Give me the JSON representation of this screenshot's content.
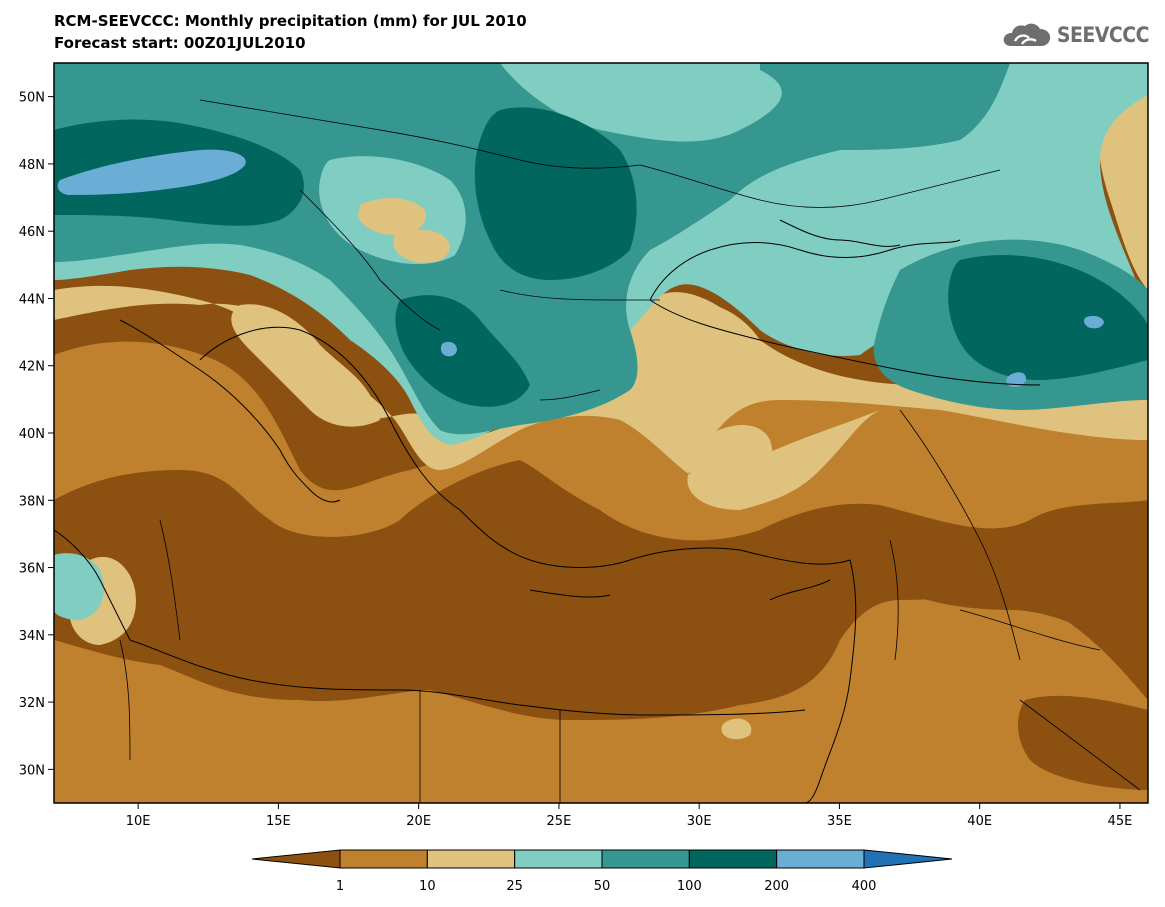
{
  "header": {
    "title": "RCM-SEEVCCC: Monthly precipitation (mm) for JUL 2010",
    "subtitle": "Forecast start: 00Z01JUL2010"
  },
  "logo": {
    "text": "SEEVCCC",
    "icon": "cloud-logo-icon"
  },
  "map": {
    "lon_range": [
      7,
      46
    ],
    "lat_range": [
      29,
      51
    ],
    "lat_ticks": [
      {
        "value": 50,
        "label": "50N"
      },
      {
        "value": 48,
        "label": "48N"
      },
      {
        "value": 46,
        "label": "46N"
      },
      {
        "value": 44,
        "label": "44N"
      },
      {
        "value": 42,
        "label": "42N"
      },
      {
        "value": 40,
        "label": "40N"
      },
      {
        "value": 38,
        "label": "38N"
      },
      {
        "value": 36,
        "label": "36N"
      },
      {
        "value": 34,
        "label": "34N"
      },
      {
        "value": 32,
        "label": "32N"
      },
      {
        "value": 30,
        "label": "30N"
      }
    ],
    "lon_ticks": [
      {
        "value": 10,
        "label": "10E"
      },
      {
        "value": 15,
        "label": "15E"
      },
      {
        "value": 20,
        "label": "20E"
      },
      {
        "value": 25,
        "label": "25E"
      },
      {
        "value": 30,
        "label": "30E"
      },
      {
        "value": 35,
        "label": "35E"
      },
      {
        "value": 40,
        "label": "40E"
      },
      {
        "value": 45,
        "label": "45E"
      }
    ]
  },
  "colorbar": {
    "colors": [
      "#8c5110",
      "#bf812d",
      "#dfc27d",
      "#80cdc1",
      "#35978f",
      "#01665e",
      "#6aaed6",
      "#2171b5"
    ],
    "levels": [
      "1",
      "10",
      "25",
      "50",
      "100",
      "200",
      "400"
    ]
  }
}
